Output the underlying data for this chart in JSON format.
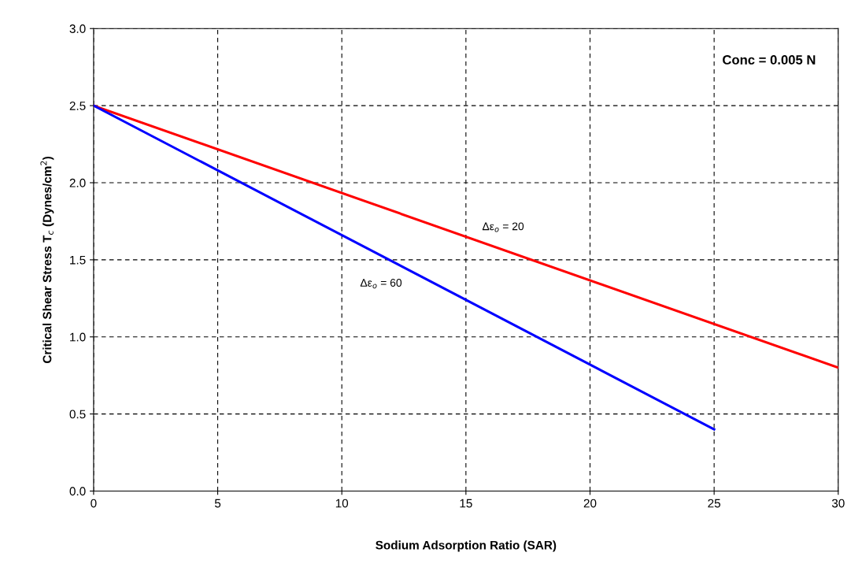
{
  "chart_data": {
    "type": "line",
    "xlabel": "Sodium Adsorption Ratio (SAR)",
    "ylabel": "Critical Shear Stress T$_{c}$ (Dynes/cm$^{2}$)",
    "annotations": [
      "Conc = 0.005 N"
    ],
    "series": [
      {
        "name": "Δε$_{o}$ = 20",
        "color": "#ff0000",
        "x": [
          0,
          30
        ],
        "values": [
          2.5,
          0.8
        ]
      },
      {
        "name": "Δε$_{o}$ = 60",
        "color": "#0000ff",
        "x": [
          0,
          25
        ],
        "values": [
          2.5,
          0.4
        ]
      }
    ],
    "xlim": [
      0,
      30
    ],
    "xticks": [
      0,
      5,
      10,
      15,
      20,
      25,
      30
    ],
    "ylim": [
      0,
      3
    ],
    "yticks": [
      {
        "value": 0,
        "label": "0.0"
      },
      {
        "value": 0.5,
        "label": "0.5"
      },
      {
        "value": 1,
        "label": "1.0"
      },
      {
        "value": 1.5,
        "label": "1.5"
      },
      {
        "value": 2,
        "label": "2.0"
      },
      {
        "value": 2.5,
        "label": "2.5"
      },
      {
        "value": 3,
        "label": "3.0"
      }
    ],
    "grid": true,
    "line_style": "solid",
    "marker": "none",
    "legend": false
  }
}
